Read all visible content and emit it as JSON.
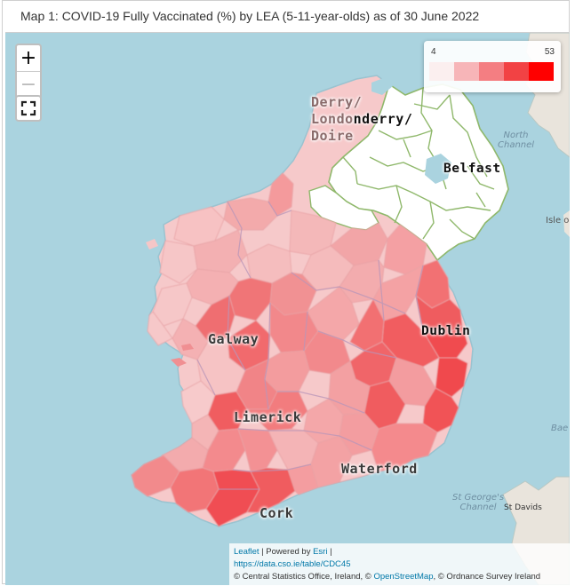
{
  "header": {
    "title": "Map 1: COVID-19 Fully Vaccinated (%) by LEA (5-11-year-olds) as of 30 June 2022"
  },
  "controls": {
    "zoom_in": "+",
    "zoom_out": "−"
  },
  "legend": {
    "min_label": "4",
    "max_label": "53",
    "colors": [
      "#fbefef",
      "#f7b5b8",
      "#f47e82",
      "#f24244",
      "#ff0000"
    ]
  },
  "labels": {
    "derry_1": "Derry/",
    "derry_2a": "Londo",
    "derry_2b": "nderry/",
    "derry_3": "Doire",
    "belfast": "Belfast",
    "galway": "Galway",
    "dublin": "Dublin",
    "limerick": "Limerick",
    "waterford": "Waterford",
    "cork": "Cork",
    "north_channel_1": "North",
    "north_channel_2": "Channel",
    "isle": "Isle o",
    "st_georges_1": "St George's",
    "st_georges_2": "Channel",
    "st_davids": "St Davids",
    "baec": "Bae C"
  },
  "attribution": {
    "leaflet": "Leaflet",
    "powered_by": " | Powered by ",
    "esri": "Esri",
    "sep": " |",
    "source_url": "https://data.cso.ie/table/CDC45",
    "copy_cso": "© Central Statistics Office, Ireland, © ",
    "osm": "OpenStreetMap",
    "copy_os": ", © Ordnance Survey Ireland"
  }
}
